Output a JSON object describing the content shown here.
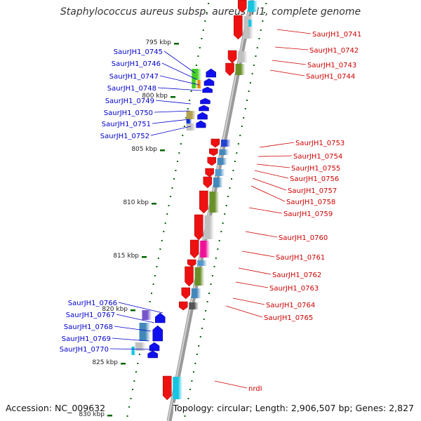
{
  "title": "Staphylococcus aureus subsp. aureus JH1, complete genome",
  "footer": {
    "accession": "Accession: NC_009632",
    "topology": "Topology: circular; Length: 2,906,507 bp; Genes: 2,827"
  },
  "colors": {
    "forward_label": "#0000cc",
    "reverse_label": "#cc0000",
    "forward_arrow": "#1010ee",
    "reverse_arrow": "#ee1111",
    "tick": "#006600",
    "backbone": "#888888"
  },
  "kbp_ticks": [
    "795 kbp",
    "800 kbp",
    "805 kbp",
    "810 kbp",
    "815 kbp",
    "820 kbp",
    "825 kbp",
    "830 kbp"
  ],
  "genes_left": [
    "SaurJH1_0745",
    "SaurJH1_0746",
    "SaurJH1_0747",
    "SaurJH1_0748",
    "SaurJH1_0749",
    "SaurJH1_0750",
    "SaurJH1_0751",
    "SaurJH1_0752",
    "SaurJH1_0766",
    "SaurJH1_0767",
    "SaurJH1_0768",
    "SaurJH1_0769",
    "SaurJH1_0770"
  ],
  "genes_right": [
    "SaurJH1_0741",
    "SaurJH1_0742",
    "SaurJH1_0743",
    "SaurJH1_0744",
    "SaurJH1_0753",
    "SaurJH1_0754",
    "SaurJH1_0755",
    "SaurJH1_0756",
    "SaurJH1_0757",
    "SaurJH1_0758",
    "SaurJH1_0759",
    "SaurJH1_0760",
    "SaurJH1_0761",
    "SaurJH1_0762",
    "SaurJH1_0763",
    "SaurJH1_0764",
    "SaurJH1_0765",
    "nrdI"
  ]
}
